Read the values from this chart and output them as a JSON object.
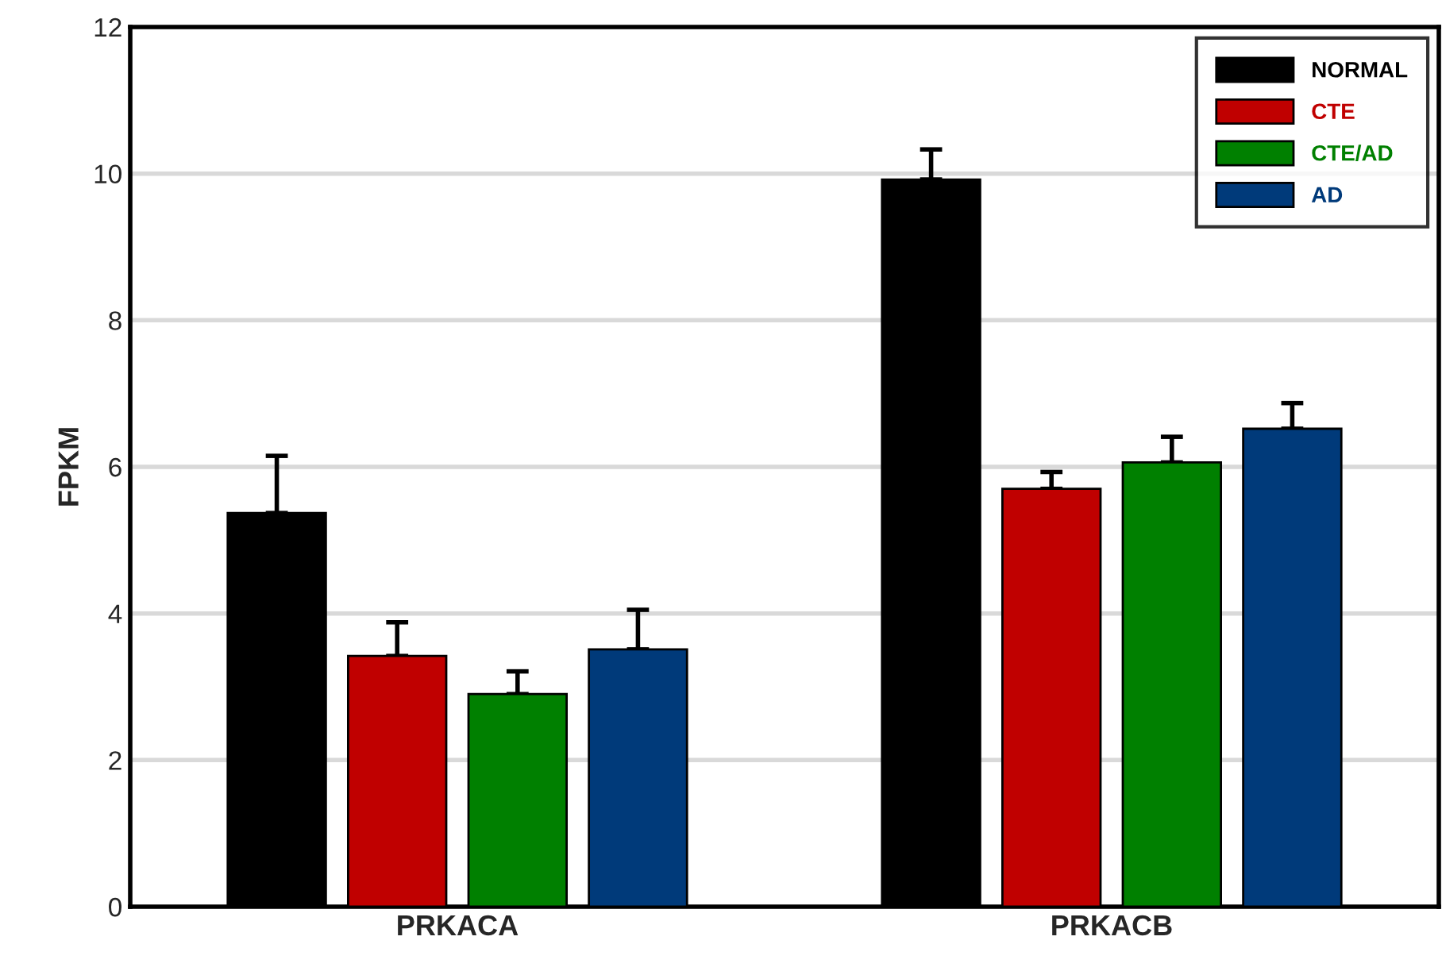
{
  "chart_data": {
    "type": "bar",
    "ylabel": "FPKM",
    "categories": [
      "PRKACA",
      "PRKACB"
    ],
    "series": [
      {
        "name": "NORMAL",
        "color": "#000000",
        "values": [
          5.37,
          9.92
        ],
        "errors": [
          [
            5.37,
            6.15
          ],
          [
            9.92,
            10.33
          ]
        ]
      },
      {
        "name": "CTE",
        "color": "#c00000",
        "values": [
          3.42,
          5.7
        ],
        "errors": [
          [
            3.42,
            3.88
          ],
          [
            5.7,
            5.93
          ]
        ]
      },
      {
        "name": "CTE/AD",
        "color": "#008000",
        "values": [
          2.9,
          6.06
        ],
        "errors": [
          [
            2.9,
            3.21
          ],
          [
            6.06,
            6.41
          ]
        ]
      },
      {
        "name": "AD",
        "color": "#003a7a",
        "values": [
          3.51,
          6.52
        ],
        "errors": [
          [
            3.51,
            4.05
          ],
          [
            6.52,
            6.87
          ]
        ]
      }
    ],
    "ylim": [
      0,
      12
    ],
    "yticks": [
      0,
      2,
      4,
      6,
      8,
      10,
      12
    ],
    "grid": "y",
    "legend": "top right"
  }
}
